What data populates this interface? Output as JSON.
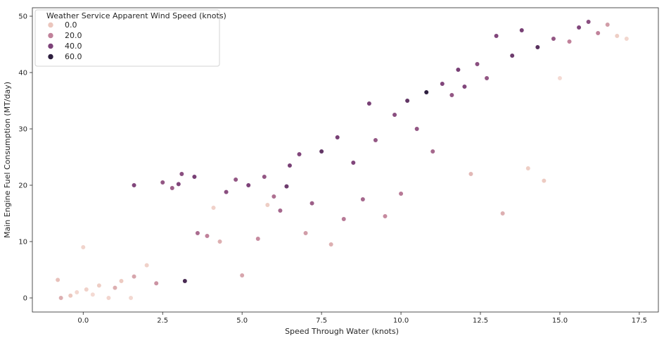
{
  "chart_data": {
    "type": "scatter",
    "title": "",
    "xlabel": "Speed Through Water (knots)",
    "ylabel": "Main Engine Fuel Consumption (MT/day)",
    "xlim": [
      -1.6,
      18.1
    ],
    "ylim": [
      -2.5,
      51.5
    ],
    "xticks": [
      0.0,
      2.5,
      5.0,
      7.5,
      10.0,
      12.5,
      15.0,
      17.5
    ],
    "xtick_labels": [
      "0.0",
      "2.5",
      "5.0",
      "7.5",
      "10.0",
      "12.5",
      "15.0",
      "17.5"
    ],
    "yticks": [
      0,
      10,
      20,
      30,
      40,
      50
    ],
    "ytick_labels": [
      "0",
      "10",
      "20",
      "30",
      "40",
      "50"
    ],
    "grid": false,
    "legend": {
      "placement": "top-left",
      "title": "Weather Service Apparent Wind Speed (knots)",
      "entries": [
        {
          "label": "0.0",
          "color": "#ebc6bd"
        },
        {
          "label": "20.0",
          "color": "#c0819a"
        },
        {
          "label": "40.0",
          "color": "#7d4279"
        },
        {
          "label": "60.0",
          "color": "#2d1e3e"
        }
      ]
    },
    "hue_var": "wind",
    "hue_range": [
      0,
      60
    ],
    "colormap": [
      "#f5ddd6",
      "#ebc6bd",
      "#c0819a",
      "#7d4279",
      "#2d1e3e"
    ],
    "points": [
      {
        "x": -0.8,
        "y": 3.2,
        "wind": 16
      },
      {
        "x": 0.0,
        "y": 9.0,
        "wind": 6
      },
      {
        "x": -0.7,
        "y": 0.0,
        "wind": 20
      },
      {
        "x": -0.4,
        "y": 0.4,
        "wind": 14
      },
      {
        "x": -0.2,
        "y": 1.0,
        "wind": 4
      },
      {
        "x": 0.1,
        "y": 1.5,
        "wind": 8
      },
      {
        "x": 0.3,
        "y": 0.6,
        "wind": 2
      },
      {
        "x": 0.5,
        "y": 2.2,
        "wind": 10
      },
      {
        "x": 0.8,
        "y": 0.0,
        "wind": 5
      },
      {
        "x": 1.0,
        "y": 1.8,
        "wind": 20
      },
      {
        "x": 1.2,
        "y": 3.0,
        "wind": 12
      },
      {
        "x": 1.5,
        "y": 0.0,
        "wind": 3
      },
      {
        "x": 1.6,
        "y": 20.0,
        "wind": 44
      },
      {
        "x": 1.6,
        "y": 3.8,
        "wind": 22
      },
      {
        "x": 2.0,
        "y": 5.8,
        "wind": 8
      },
      {
        "x": 2.3,
        "y": 2.6,
        "wind": 26
      },
      {
        "x": 2.5,
        "y": 20.5,
        "wind": 40
      },
      {
        "x": 2.8,
        "y": 19.5,
        "wind": 38
      },
      {
        "x": 3.0,
        "y": 20.2,
        "wind": 44
      },
      {
        "x": 3.1,
        "y": 22.0,
        "wind": 42
      },
      {
        "x": 3.2,
        "y": 3.0,
        "wind": 55
      },
      {
        "x": 3.5,
        "y": 21.5,
        "wind": 46
      },
      {
        "x": 3.6,
        "y": 11.5,
        "wind": 35
      },
      {
        "x": 3.9,
        "y": 11.0,
        "wind": 30
      },
      {
        "x": 4.1,
        "y": 16.0,
        "wind": 8
      },
      {
        "x": 4.3,
        "y": 10.0,
        "wind": 20
      },
      {
        "x": 4.5,
        "y": 18.8,
        "wind": 42
      },
      {
        "x": 4.8,
        "y": 21.0,
        "wind": 40
      },
      {
        "x": 5.0,
        "y": 4.0,
        "wind": 22
      },
      {
        "x": 5.2,
        "y": 20.0,
        "wind": 45
      },
      {
        "x": 5.5,
        "y": 10.5,
        "wind": 28
      },
      {
        "x": 5.7,
        "y": 21.5,
        "wind": 40
      },
      {
        "x": 5.8,
        "y": 16.5,
        "wind": 10
      },
      {
        "x": 6.0,
        "y": 18.0,
        "wind": 34
      },
      {
        "x": 6.2,
        "y": 15.5,
        "wind": 36
      },
      {
        "x": 6.4,
        "y": 19.8,
        "wind": 48
      },
      {
        "x": 6.5,
        "y": 23.5,
        "wind": 46
      },
      {
        "x": 6.8,
        "y": 25.5,
        "wind": 44
      },
      {
        "x": 7.0,
        "y": 11.5,
        "wind": 24
      },
      {
        "x": 7.2,
        "y": 16.8,
        "wind": 38
      },
      {
        "x": 7.5,
        "y": 26.0,
        "wind": 50
      },
      {
        "x": 7.8,
        "y": 9.5,
        "wind": 20
      },
      {
        "x": 8.0,
        "y": 28.5,
        "wind": 46
      },
      {
        "x": 8.2,
        "y": 14.0,
        "wind": 32
      },
      {
        "x": 8.5,
        "y": 24.0,
        "wind": 44
      },
      {
        "x": 8.8,
        "y": 17.5,
        "wind": 36
      },
      {
        "x": 9.0,
        "y": 34.5,
        "wind": 46
      },
      {
        "x": 9.2,
        "y": 28.0,
        "wind": 40
      },
      {
        "x": 9.5,
        "y": 14.5,
        "wind": 28
      },
      {
        "x": 9.8,
        "y": 32.5,
        "wind": 42
      },
      {
        "x": 10.0,
        "y": 18.5,
        "wind": 32
      },
      {
        "x": 10.2,
        "y": 35.0,
        "wind": 50
      },
      {
        "x": 10.5,
        "y": 30.0,
        "wind": 40
      },
      {
        "x": 10.8,
        "y": 36.5,
        "wind": 62
      },
      {
        "x": 11.0,
        "y": 26.0,
        "wind": 36
      },
      {
        "x": 11.3,
        "y": 38.0,
        "wind": 44
      },
      {
        "x": 11.6,
        "y": 36.0,
        "wind": 40
      },
      {
        "x": 11.8,
        "y": 40.5,
        "wind": 46
      },
      {
        "x": 12.0,
        "y": 37.5,
        "wind": 44
      },
      {
        "x": 12.2,
        "y": 22.0,
        "wind": 18
      },
      {
        "x": 12.4,
        "y": 41.5,
        "wind": 42
      },
      {
        "x": 12.7,
        "y": 39.0,
        "wind": 40
      },
      {
        "x": 13.0,
        "y": 46.5,
        "wind": 44
      },
      {
        "x": 13.2,
        "y": 15.0,
        "wind": 20
      },
      {
        "x": 13.5,
        "y": 43.0,
        "wind": 48
      },
      {
        "x": 13.8,
        "y": 47.5,
        "wind": 46
      },
      {
        "x": 14.0,
        "y": 23.0,
        "wind": 10
      },
      {
        "x": 14.3,
        "y": 44.5,
        "wind": 52
      },
      {
        "x": 14.5,
        "y": 20.8,
        "wind": 12
      },
      {
        "x": 14.8,
        "y": 46.0,
        "wind": 40
      },
      {
        "x": 15.0,
        "y": 39.0,
        "wind": 2
      },
      {
        "x": 15.3,
        "y": 45.5,
        "wind": 30
      },
      {
        "x": 15.6,
        "y": 48.0,
        "wind": 44
      },
      {
        "x": 15.9,
        "y": 49.0,
        "wind": 42
      },
      {
        "x": 16.2,
        "y": 47.0,
        "wind": 30
      },
      {
        "x": 16.5,
        "y": 48.5,
        "wind": 24
      },
      {
        "x": 16.8,
        "y": 46.5,
        "wind": 10
      },
      {
        "x": 17.1,
        "y": 46.0,
        "wind": 4
      }
    ]
  }
}
